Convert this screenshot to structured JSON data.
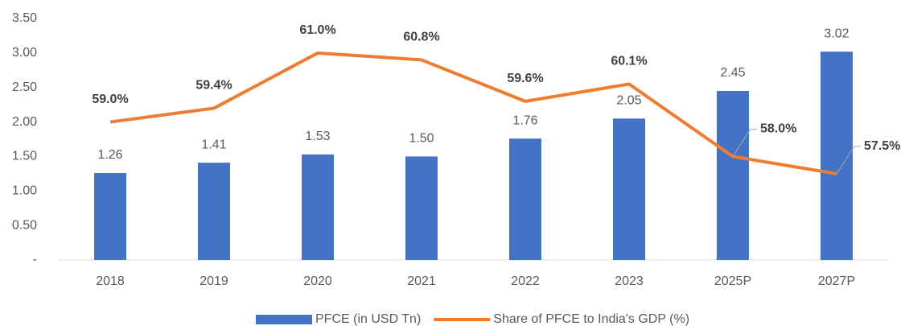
{
  "chart_data": {
    "type": "bar",
    "categories": [
      "2018",
      "2019",
      "2020",
      "2021",
      "2022",
      "2023",
      "2025P",
      "2027P"
    ],
    "ylim": [
      0,
      3.5
    ],
    "yticks": [
      {
        "value": 0,
        "label": "-"
      },
      {
        "value": 0.5,
        "label": "0.50"
      },
      {
        "value": 1,
        "label": "1.00"
      },
      {
        "value": 1.5,
        "label": "1.50"
      },
      {
        "value": 2,
        "label": "2.00"
      },
      {
        "value": 2.5,
        "label": "2.50"
      },
      {
        "value": 3,
        "label": "3.00"
      },
      {
        "value": 3.5,
        "label": "3.50"
      }
    ],
    "y2lim": [
      55,
      62
    ],
    "legend": "bottom",
    "series": [
      {
        "name": "PFCE (in USD Tn)",
        "type": "bar",
        "color": "#4472c4",
        "values": [
          1.26,
          1.41,
          1.53,
          1.5,
          1.76,
          2.05,
          2.45,
          3.02
        ],
        "value_labels": [
          "1.26",
          "1.41",
          "1.53",
          "1.50",
          "1.76",
          "2.05",
          "2.45",
          "3.02"
        ]
      },
      {
        "name": "Share of PFCE to India's GDP (%)",
        "type": "line",
        "axis": "y2",
        "color": "#ed7d31",
        "values": [
          59.0,
          59.4,
          61.0,
          60.8,
          59.6,
          60.1,
          58.0,
          57.5
        ],
        "value_labels": [
          "59.0%",
          "59.4%",
          "61.0%",
          "60.8%",
          "59.6%",
          "60.1%",
          "58.0%",
          "57.5%"
        ]
      }
    ]
  }
}
